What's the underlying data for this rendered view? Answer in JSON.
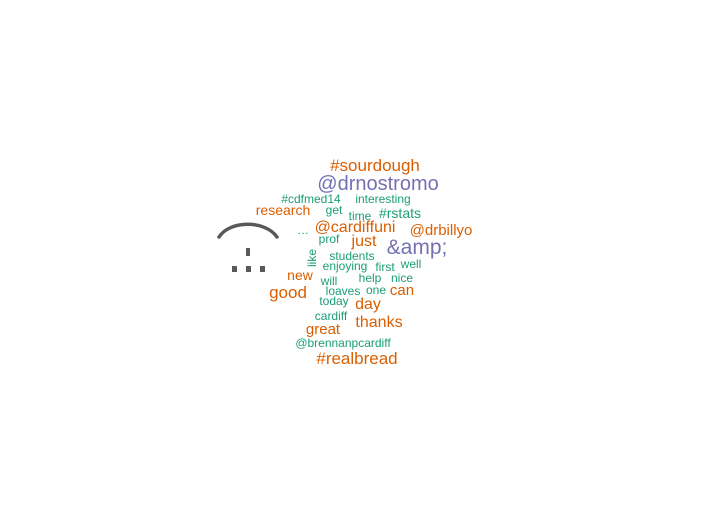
{
  "word_cloud": {
    "colors": {
      "orange": "#d95f02",
      "teal": "#1b9e77",
      "purple": "#7570b3",
      "gray": "#595959"
    },
    "words": [
      {
        "text": "#sourdough",
        "color": "orange"
      },
      {
        "text": "@drnostromo",
        "color": "purple"
      },
      {
        "text": "#cdfmed14",
        "color": "teal"
      },
      {
        "text": "interesting",
        "color": "teal"
      },
      {
        "text": "research",
        "color": "orange"
      },
      {
        "text": "get",
        "color": "teal"
      },
      {
        "text": "time",
        "color": "teal"
      },
      {
        "text": "#rstats",
        "color": "teal"
      },
      {
        "text": "…",
        "color": "teal"
      },
      {
        "text": "@cardiffuni",
        "color": "orange"
      },
      {
        "text": "@drbillyo",
        "color": "orange"
      },
      {
        "text": "prof",
        "color": "teal"
      },
      {
        "text": "just",
        "color": "orange"
      },
      {
        "text": "&amp;",
        "color": "purple"
      },
      {
        "text": "like",
        "color": "teal"
      },
      {
        "text": "students",
        "color": "teal"
      },
      {
        "text": "enjoying",
        "color": "teal"
      },
      {
        "text": "first",
        "color": "teal"
      },
      {
        "text": "well",
        "color": "teal"
      },
      {
        "text": "new",
        "color": "orange"
      },
      {
        "text": "will",
        "color": "teal"
      },
      {
        "text": "help",
        "color": "teal"
      },
      {
        "text": "nice",
        "color": "teal"
      },
      {
        "text": "good",
        "color": "orange"
      },
      {
        "text": "loaves",
        "color": "teal"
      },
      {
        "text": "one",
        "color": "teal"
      },
      {
        "text": "can",
        "color": "orange"
      },
      {
        "text": "today",
        "color": "teal"
      },
      {
        "text": "day",
        "color": "orange"
      },
      {
        "text": "cardiff",
        "color": "teal"
      },
      {
        "text": "thanks",
        "color": "orange"
      },
      {
        "text": "great",
        "color": "orange"
      },
      {
        "text": "@brennanpcardiff",
        "color": "teal"
      },
      {
        "text": "#realbread",
        "color": "orange"
      }
    ]
  }
}
